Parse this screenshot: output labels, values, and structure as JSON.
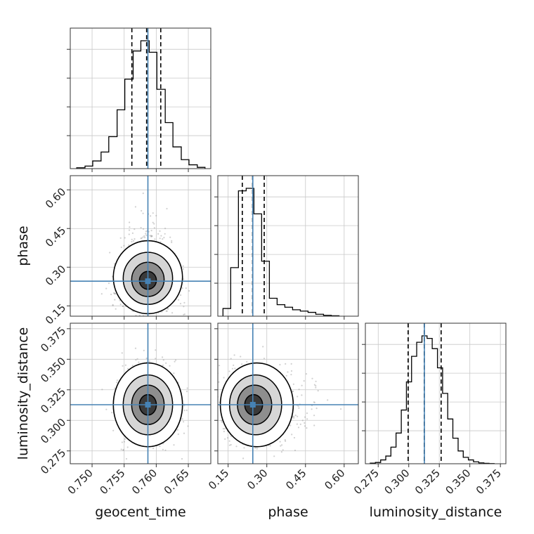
{
  "truth_color": "#4682b4",
  "chart_data": {
    "type": "corner",
    "grid": true,
    "parameters": [
      "geocent_time",
      "phase",
      "luminosity_distance"
    ],
    "axes": {
      "geocent_time": {
        "label": "geocent_time",
        "range": [
          0.7466,
          0.7685
        ],
        "ticks": [
          0.75,
          0.755,
          0.76,
          0.765
        ],
        "tick_labels": [
          "0.750",
          "0.755",
          "0.760",
          "0.765"
        ]
      },
      "phase": {
        "label": "phase",
        "range": [
          0.11,
          0.655
        ],
        "ticks": [
          0.15,
          0.3,
          0.45,
          0.6
        ],
        "tick_labels": [
          "0.15",
          "0.30",
          "0.45",
          "0.60"
        ]
      },
      "luminosity_distance": {
        "label": "luminosity_distance",
        "range": [
          0.2645,
          0.3795
        ],
        "ticks": [
          0.275,
          0.3,
          0.325,
          0.35,
          0.375
        ],
        "tick_labels": [
          "0.275",
          "0.300",
          "0.325",
          "0.350",
          "0.375"
        ]
      }
    },
    "truths": {
      "geocent_time": 0.7587,
      "phase": 0.2457,
      "luminosity_distance": 0.3128
    },
    "quantiles": {
      "geocent_time": [
        0.7562,
        0.7585,
        0.7607
      ],
      "phase": [
        0.205,
        0.245,
        0.29
      ],
      "luminosity_distance": [
        0.2995,
        0.3127,
        0.3265
      ]
    },
    "histograms": {
      "geocent_time": {
        "bin_edges": [
          0.7476,
          0.7489,
          0.7501,
          0.7514,
          0.7526,
          0.7539,
          0.7551,
          0.7564,
          0.7576,
          0.7589,
          0.7601,
          0.7614,
          0.7626,
          0.7639,
          0.7651,
          0.7664,
          0.7676
        ],
        "counts": [
          0.007,
          0.02,
          0.06,
          0.13,
          0.25,
          0.46,
          0.7,
          0.92,
          1.0,
          0.91,
          0.62,
          0.36,
          0.17,
          0.07,
          0.03,
          0.01
        ]
      },
      "phase": {
        "bin_edges": [
          0.13,
          0.16,
          0.19,
          0.22,
          0.25,
          0.28,
          0.31,
          0.34,
          0.37,
          0.4,
          0.43,
          0.46,
          0.49,
          0.52,
          0.55,
          0.58
        ],
        "counts": [
          0.06,
          0.38,
          0.98,
          1.0,
          0.8,
          0.43,
          0.14,
          0.09,
          0.07,
          0.05,
          0.04,
          0.03,
          0.015,
          0.007,
          0.003
        ]
      },
      "luminosity_distance": {
        "bin_edges": [
          0.2685,
          0.2727,
          0.277,
          0.2812,
          0.2854,
          0.2896,
          0.2939,
          0.2981,
          0.3023,
          0.3065,
          0.3108,
          0.315,
          0.3192,
          0.3235,
          0.3277,
          0.3319,
          0.3361,
          0.3404,
          0.3446,
          0.3488,
          0.353,
          0.3573,
          0.3615,
          0.3657,
          0.3699
        ],
        "counts": [
          0.005,
          0.01,
          0.03,
          0.06,
          0.13,
          0.24,
          0.42,
          0.64,
          0.84,
          0.95,
          1.0,
          0.98,
          0.9,
          0.75,
          0.55,
          0.35,
          0.2,
          0.1,
          0.05,
          0.03,
          0.015,
          0.007,
          0.003,
          0.001
        ]
      }
    },
    "scatter_density": {
      "phase_vs_geocent_time": {
        "center": [
          0.7587,
          0.245
        ],
        "sd": [
          0.0022,
          0.055
        ],
        "skew_up": 0.45,
        "correlation": 0.0
      },
      "luminosity_distance_vs_geocent_time": {
        "center": [
          0.7587,
          0.3127
        ],
        "sd": [
          0.0022,
          0.014
        ],
        "correlation": 0.0
      },
      "luminosity_distance_vs_phase": {
        "center": [
          0.245,
          0.3127
        ],
        "sd": [
          0.055,
          0.014
        ],
        "skew_right": 0.45,
        "correlation": 0.0
      }
    }
  }
}
